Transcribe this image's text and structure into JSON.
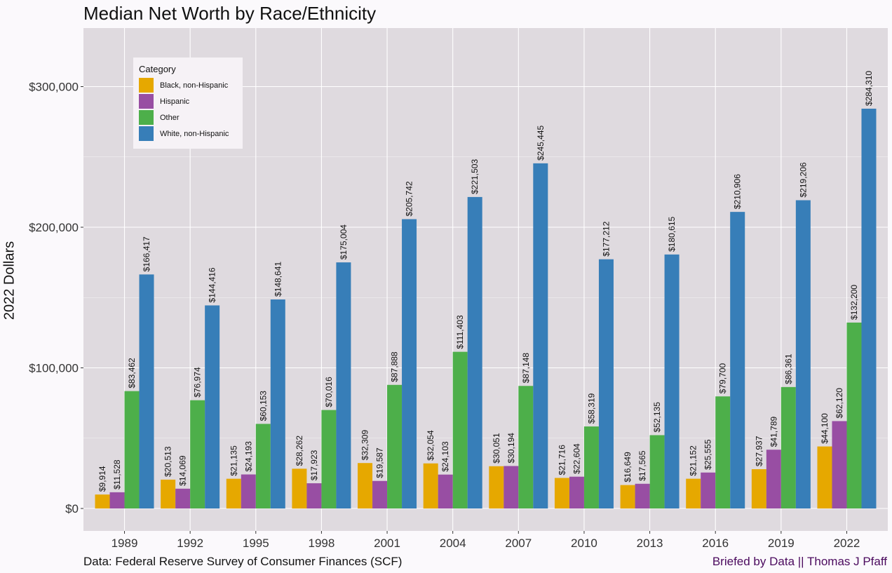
{
  "chart_data": {
    "type": "bar",
    "title": "Median Net Worth by Race/Ethnicity",
    "xlabel": "",
    "ylabel": "2022 Dollars",
    "ylim": [
      0,
      340000
    ],
    "yticks": [
      0,
      100000,
      200000,
      300000
    ],
    "ytick_labels": [
      "$0",
      "$100,000",
      "$200,000",
      "$300,000"
    ],
    "grid": true,
    "legend_title": "Category",
    "legend_position": "top-left",
    "categories": [
      "1989",
      "1992",
      "1995",
      "1998",
      "2001",
      "2004",
      "2007",
      "2010",
      "2013",
      "2016",
      "2019",
      "2022"
    ],
    "series": [
      {
        "name": "Black, non-Hispanic",
        "color": "#e6a800",
        "values": [
          9914,
          20513,
          21135,
          28262,
          32309,
          32054,
          30051,
          21716,
          16649,
          21152,
          27937,
          44100
        ],
        "labels": [
          "$9,914",
          "$20,513",
          "$21,135",
          "$28,262",
          "$32,309",
          "$32,054",
          "$30,051",
          "$21,716",
          "$16,649",
          "$21,152",
          "$27,937",
          "$44,100"
        ]
      },
      {
        "name": "Hispanic",
        "color": "#984ea3",
        "values": [
          11528,
          14069,
          24193,
          17923,
          19587,
          24103,
          30194,
          22604,
          17565,
          25555,
          41789,
          62120
        ],
        "labels": [
          "$11,528",
          "$14,069",
          "$24,193",
          "$17,923",
          "$19,587",
          "$24,103",
          "$30,194",
          "$22,604",
          "$17,565",
          "$25,555",
          "$41,789",
          "$62,120"
        ]
      },
      {
        "name": "Other",
        "color": "#4daf4a",
        "values": [
          83462,
          76974,
          60153,
          70016,
          87888,
          111403,
          87148,
          58319,
          52135,
          79700,
          86361,
          132200
        ],
        "labels": [
          "$83,462",
          "$76,974",
          "$60,153",
          "$70,016",
          "$87,888",
          "$111,403",
          "$87,148",
          "$58,319",
          "$52,135",
          "$79,700",
          "$86,361",
          "$132,200"
        ]
      },
      {
        "name": "White, non-Hispanic",
        "color": "#377eb8",
        "values": [
          166417,
          144416,
          148641,
          175004,
          205742,
          221503,
          245445,
          177212,
          180615,
          210906,
          219206,
          284310
        ],
        "labels": [
          "$166,417",
          "$144,416",
          "$148,641",
          "$175,004",
          "$205,742",
          "$221,503",
          "$245,445",
          "$177,212",
          "$180,615",
          "$210,906",
          "$219,206",
          "$284,310"
        ]
      }
    ]
  },
  "captions": {
    "source": "Data: Federal Reserve Survey of Consumer Finances (SCF)",
    "credit": "Briefed by Data || Thomas J Pfaff"
  },
  "colors": {
    "panel_background": "#dfdadf",
    "gridline": "#ffffff",
    "page_background": "#fbf9fc",
    "credit_text": "#4b0a5e"
  }
}
